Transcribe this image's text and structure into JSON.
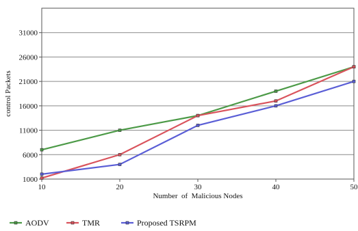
{
  "chart_data": {
    "type": "line",
    "title": "",
    "xlabel": "Number  of  Malicious Nodes",
    "ylabel": "control Packets",
    "x": [
      10,
      20,
      30,
      40,
      50
    ],
    "xlim": [
      10,
      50
    ],
    "ylim": [
      1000,
      36000
    ],
    "y_ticks": [
      1000,
      6000,
      11000,
      16000,
      21000,
      26000,
      31000
    ],
    "grid": "horizontal",
    "legend_position": "bottom",
    "series": [
      {
        "name": "AODV",
        "color": "#4c9a47",
        "values": [
          7000,
          11000,
          14000,
          19000,
          24000
        ]
      },
      {
        "name": "TMR",
        "color": "#d9535c",
        "values": [
          1200,
          6000,
          14000,
          17000,
          24000
        ]
      },
      {
        "name": "Proposed TSRPM",
        "color": "#5a5ed6",
        "values": [
          2000,
          4000,
          12000,
          16000,
          21000
        ]
      }
    ]
  }
}
